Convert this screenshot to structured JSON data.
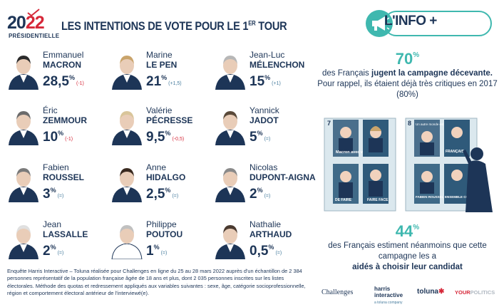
{
  "logo": {
    "year_a": "20",
    "year_b": "22",
    "subtitle": "PRÉSIDENTIELLE"
  },
  "title": {
    "main": "LES INTENTIONS DE VOTE POUR LE 1",
    "sup": "ER",
    "tail": " TOUR"
  },
  "candidates": [
    {
      "first": "Emmanuel",
      "last": "MACRON",
      "score": "28,5",
      "unit": "%",
      "change": "(-1)",
      "change_type": "down",
      "hair": "#2b2b2b",
      "jacket": "#1d3557"
    },
    {
      "first": "Marine",
      "last": "LE PEN",
      "score": "21",
      "unit": "%",
      "change": "(+1,5)",
      "change_type": "up",
      "hair": "#c9a46b",
      "jacket": "#1d3557"
    },
    {
      "first": "Jean-Luc",
      "last": "MÉLENCHON",
      "score": "15",
      "unit": "%",
      "change": "(+1)",
      "change_type": "up",
      "hair": "#b7b7b7",
      "jacket": "#1d3557"
    },
    {
      "first": "Éric",
      "last": "ZEMMOUR",
      "score": "10",
      "unit": "%",
      "change": "(-1)",
      "change_type": "down",
      "hair": "#6b6b6b",
      "jacket": "#1d3557"
    },
    {
      "first": "Valérie",
      "last": "PÉCRESSE",
      "score": "9,5",
      "unit": "%",
      "change": "(-0,5)",
      "change_type": "down",
      "hair": "#d9c59a",
      "jacket": "#1d3557"
    },
    {
      "first": "Yannick",
      "last": "JADOT",
      "score": "5",
      "unit": "%",
      "change": "(=)",
      "change_type": "same",
      "hair": "#5a4a3a",
      "jacket": "#1d3557"
    },
    {
      "first": "Fabien",
      "last": "ROUSSEL",
      "score": "3",
      "unit": "%",
      "change": "(=)",
      "change_type": "same",
      "hair": "#7a7a7a",
      "jacket": "#1d3557"
    },
    {
      "first": "Anne",
      "last": "HIDALGO",
      "score": "2,5",
      "unit": "%",
      "change": "(=)",
      "change_type": "same",
      "hair": "#3a2a20",
      "jacket": "#1d3557"
    },
    {
      "first": "Nicolas",
      "last": "DUPONT-AIGNAN",
      "score": "2",
      "unit": "%",
      "change": "(=)",
      "change_type": "same",
      "hair": "#8a8a8a",
      "jacket": "#1d3557"
    },
    {
      "first": "Jean",
      "last": "LASSALLE",
      "score": "2",
      "unit": "%",
      "change": "(=)",
      "change_type": "same",
      "hair": "#e0e0e0",
      "jacket": "#1d3557"
    },
    {
      "first": "Philippe",
      "last": "POUTOU",
      "score": "1",
      "unit": "%",
      "change": "(=)",
      "change_type": "same",
      "hair": "#c0c0c0",
      "jacket": "#ffffff"
    },
    {
      "first": "Nathalie",
      "last": "ARTHAUD",
      "score": "0,5",
      "unit": "%",
      "change": "(=)",
      "change_type": "same",
      "hair": "#4a3a30",
      "jacket": "#1d3557"
    }
  ],
  "footnote": "Enquête Harris Interactive – Toluna réalisée pour Challenges en ligne du 25 au 28 mars 2022 auprès d'un échantillon de 2 384 personnes représentatif de la population française âgée de 18 ans et plus, dont 2 035 personnes inscrites sur les listes électorales. Méthode des quotas et redressement appliqués aux variables suivantes : sexe, âge, catégorie socioprofessionnelle, région et comportement électoral antérieur de l'interviewé(e).",
  "info": {
    "badge": "L'INFO +",
    "stat1_value": "70",
    "stat1_unit": "%",
    "stat1_pre": "des Français ",
    "stat1_bold": "jugent la campagne décevante.",
    "stat1_rest": "Pour rappel, ils étaient déjà très critiques en 2017 (80%)",
    "stat2_value": "44",
    "stat2_unit": "%",
    "stat2_text": "des Français estiment néanmoins que cette campagne les a",
    "stat2_bold": "aidés à choisir leur candidat"
  },
  "posters": {
    "board_left_number": "7",
    "board_right_number": "8",
    "macron_slogan": "Macron avec vous",
    "roussel_name": "FABIEN ROUSSEL",
    "right_banner": "Un autre monde est possible",
    "francais": "FRANÇAIS",
    "faire_face": "FAIRE FACE",
    "de_faire": "DE FAIRE",
    "changer": "ENSEMBLE CHANGEONS"
  },
  "colors": {
    "navy": "#1d3557",
    "teal": "#3fb8af",
    "red": "#d62839",
    "poster_bg": "#2f5a7a"
  },
  "partners": {
    "challenges": "Challenges",
    "harris": "harris",
    "harris2": "interactive",
    "harris_sub": "a toluna company",
    "toluna": "toluna",
    "toluna_star": "✱",
    "your": "YOUR",
    "politics": "POLITICS"
  }
}
